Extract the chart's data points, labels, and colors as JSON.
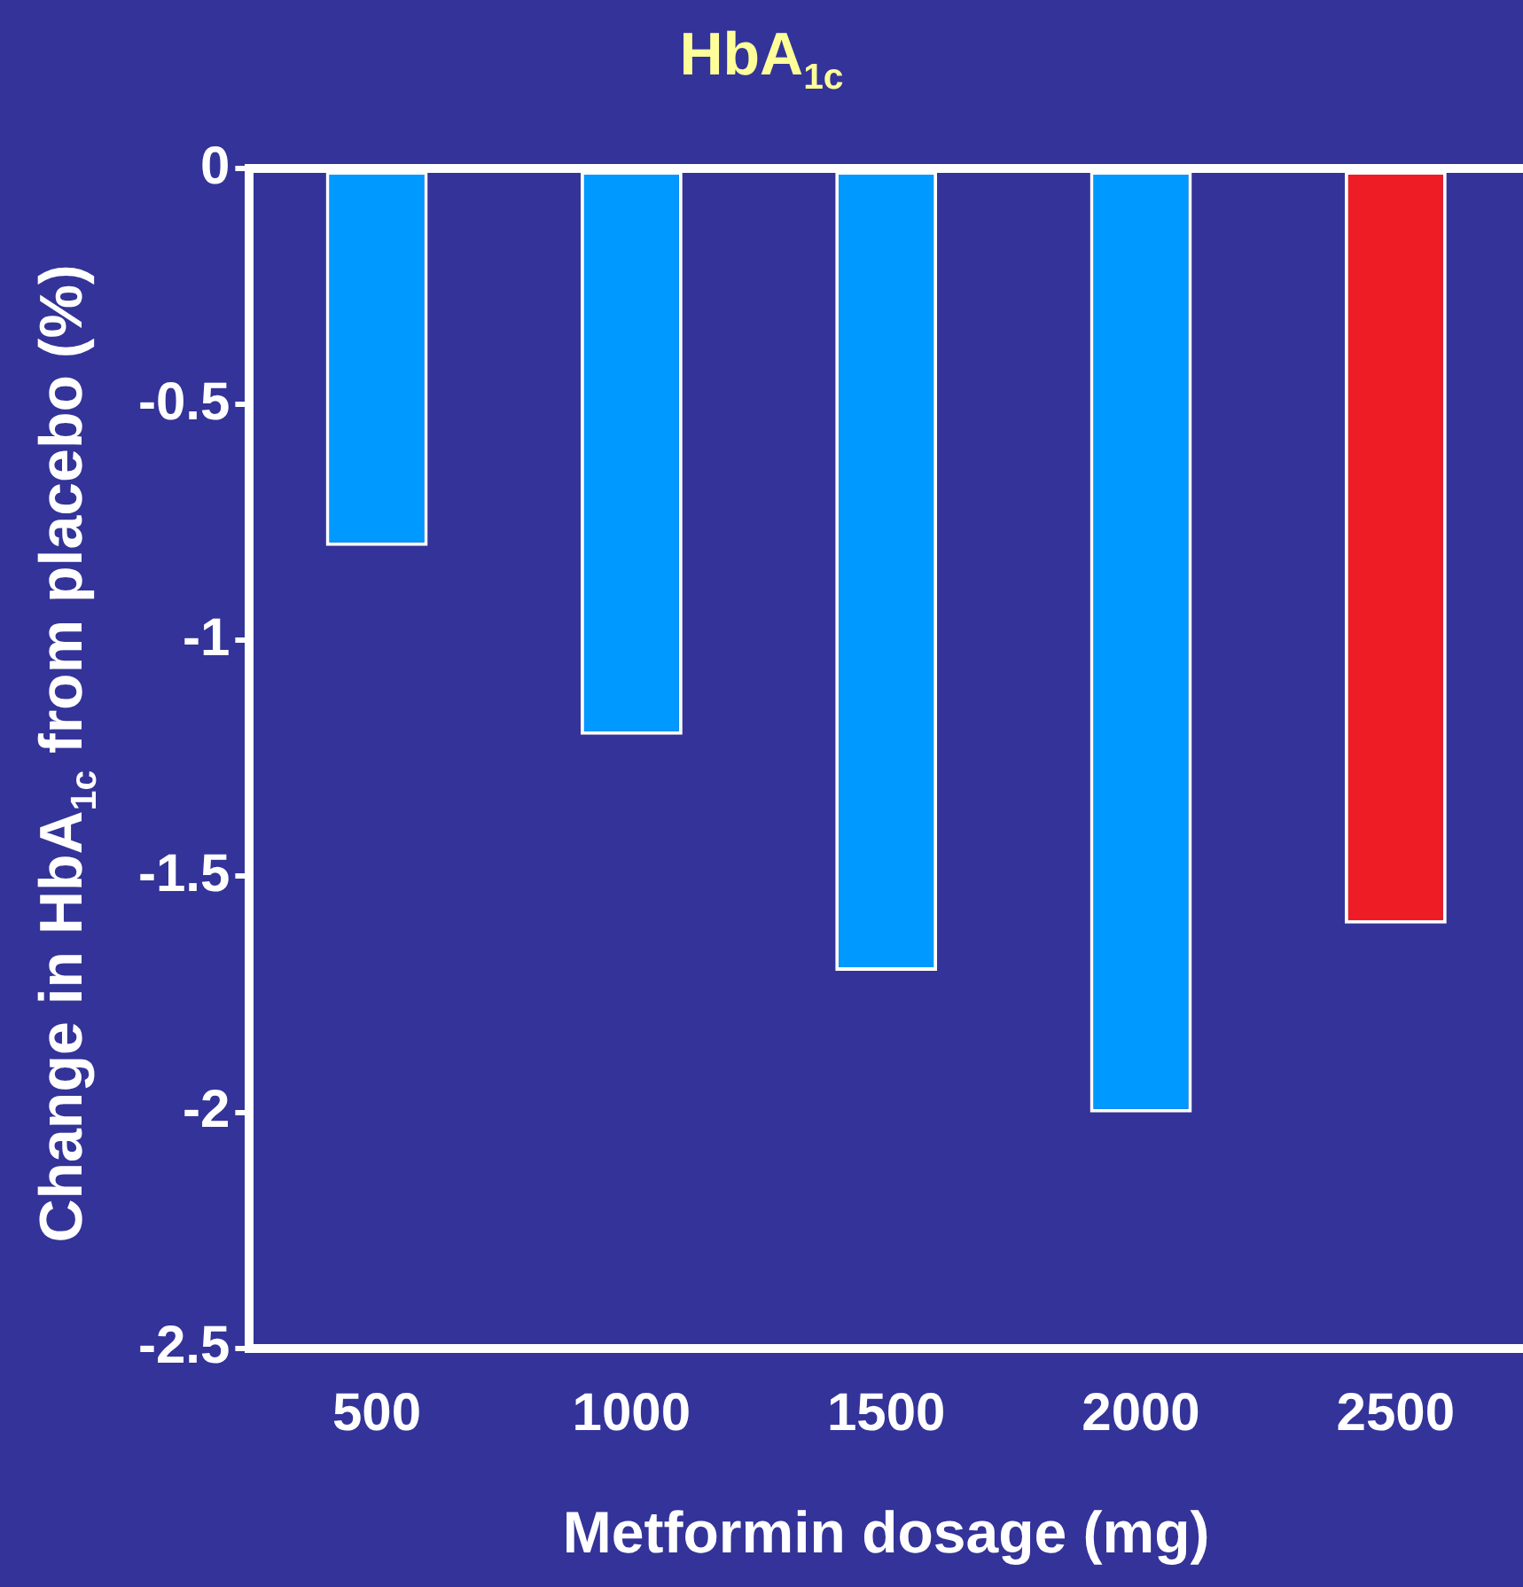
{
  "chart_data": {
    "type": "bar",
    "title": "HbA$_{1c}$",
    "xlabel": "Metformin dosage (mg)",
    "ylabel": "Change in HbA$_{1c}$ from placebo (%)",
    "categories": [
      "500",
      "1000",
      "1500",
      "2000",
      "2500"
    ],
    "values": [
      -0.8,
      -1.2,
      -1.7,
      -2.0,
      -1.6
    ],
    "colors": [
      "#0099ff",
      "#0099ff",
      "#0099ff",
      "#0099ff",
      "#ee1c24"
    ],
    "ylim": [
      -2.5,
      0
    ],
    "yticks": [
      0,
      -0.5,
      -1,
      -1.5,
      -2,
      -2.5
    ],
    "grid": false,
    "legend": false
  }
}
